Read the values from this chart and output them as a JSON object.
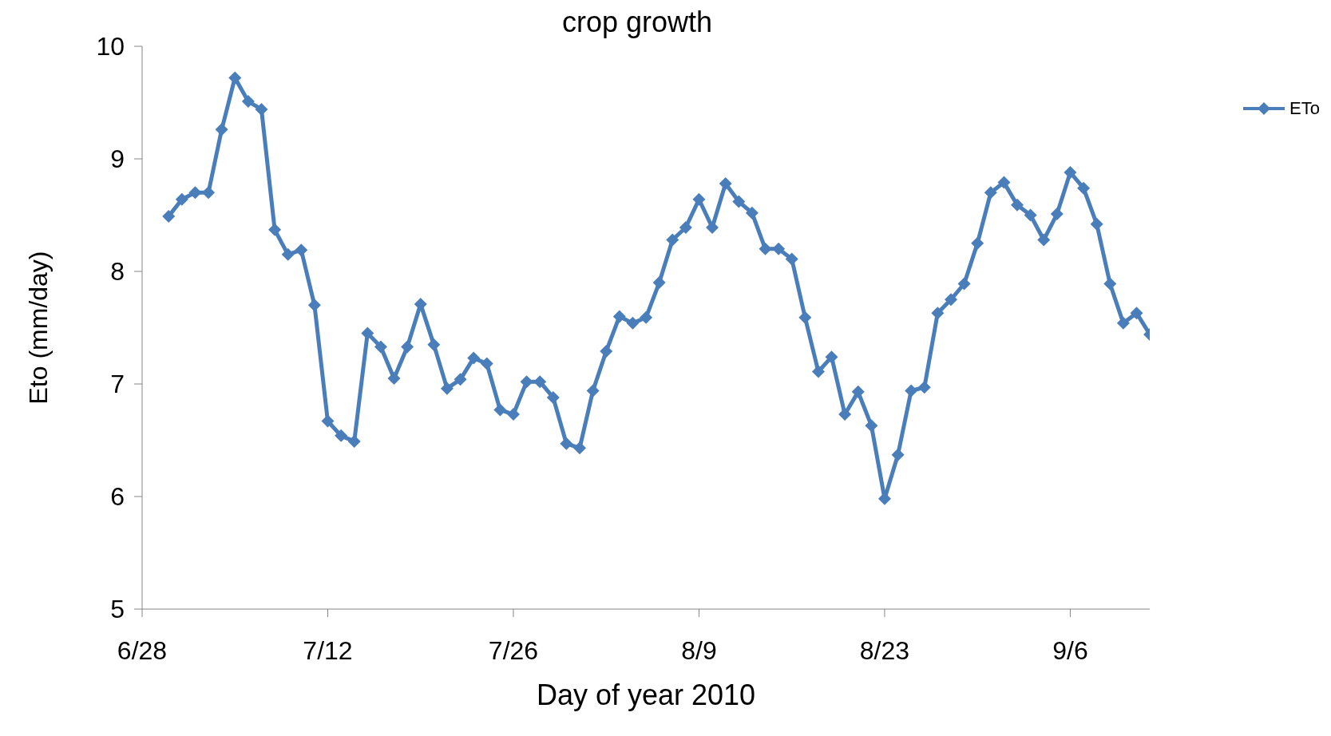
{
  "chart_data": {
    "type": "line",
    "title": "crop growth",
    "xlabel": "Day of year 2010",
    "ylabel": "Eto (mm/day)",
    "x": [
      "2010-06-30",
      "2010-07-01",
      "2010-07-02",
      "2010-07-03",
      "2010-07-04",
      "2010-07-05",
      "2010-07-06",
      "2010-07-07",
      "2010-07-08",
      "2010-07-09",
      "2010-07-10",
      "2010-07-11",
      "2010-07-12",
      "2010-07-13",
      "2010-07-14",
      "2010-07-15",
      "2010-07-16",
      "2010-07-17",
      "2010-07-18",
      "2010-07-19",
      "2010-07-20",
      "2010-07-21",
      "2010-07-22",
      "2010-07-23",
      "2010-07-24",
      "2010-07-25",
      "2010-07-26",
      "2010-07-27",
      "2010-07-28",
      "2010-07-29",
      "2010-07-30",
      "2010-07-31",
      "2010-08-01",
      "2010-08-02",
      "2010-08-03",
      "2010-08-04",
      "2010-08-05",
      "2010-08-06",
      "2010-08-07",
      "2010-08-08",
      "2010-08-09",
      "2010-08-10",
      "2010-08-11",
      "2010-08-12",
      "2010-08-13",
      "2010-08-14",
      "2010-08-15",
      "2010-08-16",
      "2010-08-17",
      "2010-08-18",
      "2010-08-19",
      "2010-08-20",
      "2010-08-21",
      "2010-08-22",
      "2010-08-23",
      "2010-08-24",
      "2010-08-25",
      "2010-08-26",
      "2010-08-27",
      "2010-08-28",
      "2010-08-29",
      "2010-08-30",
      "2010-08-31",
      "2010-09-01",
      "2010-09-02",
      "2010-09-03",
      "2010-09-04",
      "2010-09-05",
      "2010-09-06",
      "2010-09-07",
      "2010-09-08",
      "2010-09-09",
      "2010-09-10",
      "2010-09-11",
      "2010-09-12"
    ],
    "series": [
      {
        "name": "ETo",
        "color": "#4a7ebb",
        "values": [
          8.49,
          8.64,
          8.7,
          8.7,
          9.26,
          9.72,
          9.51,
          9.44,
          8.37,
          8.15,
          8.19,
          7.7,
          6.67,
          6.54,
          6.49,
          7.45,
          7.33,
          7.05,
          7.33,
          7.71,
          7.35,
          6.96,
          7.04,
          7.23,
          7.18,
          6.77,
          6.73,
          7.02,
          7.02,
          6.88,
          6.47,
          6.43,
          6.94,
          7.29,
          7.6,
          7.54,
          7.59,
          7.9,
          8.28,
          8.39,
          8.64,
          8.39,
          8.78,
          8.62,
          8.52,
          8.2,
          8.2,
          8.11,
          7.59,
          7.11,
          7.24,
          6.73,
          6.93,
          6.63,
          5.98,
          6.37,
          6.94,
          6.97,
          7.63,
          7.75,
          7.89,
          8.25,
          8.7,
          8.79,
          8.59,
          8.5,
          8.28,
          8.51,
          8.88,
          8.74,
          8.42,
          7.89,
          7.54,
          7.63,
          7.44
        ]
      }
    ],
    "xlim": [
      "2010-06-28",
      "2010-09-12"
    ],
    "xticks": [
      {
        "value": "2010-06-28",
        "label": "6/28"
      },
      {
        "value": "2010-07-12",
        "label": "7/12"
      },
      {
        "value": "2010-07-26",
        "label": "7/26"
      },
      {
        "value": "2010-08-09",
        "label": "8/9"
      },
      {
        "value": "2010-08-23",
        "label": "8/23"
      },
      {
        "value": "2010-09-06",
        "label": "9/6"
      }
    ],
    "ylim": [
      5,
      10
    ],
    "yticks": [
      5,
      6,
      7,
      8,
      9,
      10
    ],
    "grid": false,
    "legend": "right",
    "marker": "diamond",
    "line_style": "solid"
  }
}
